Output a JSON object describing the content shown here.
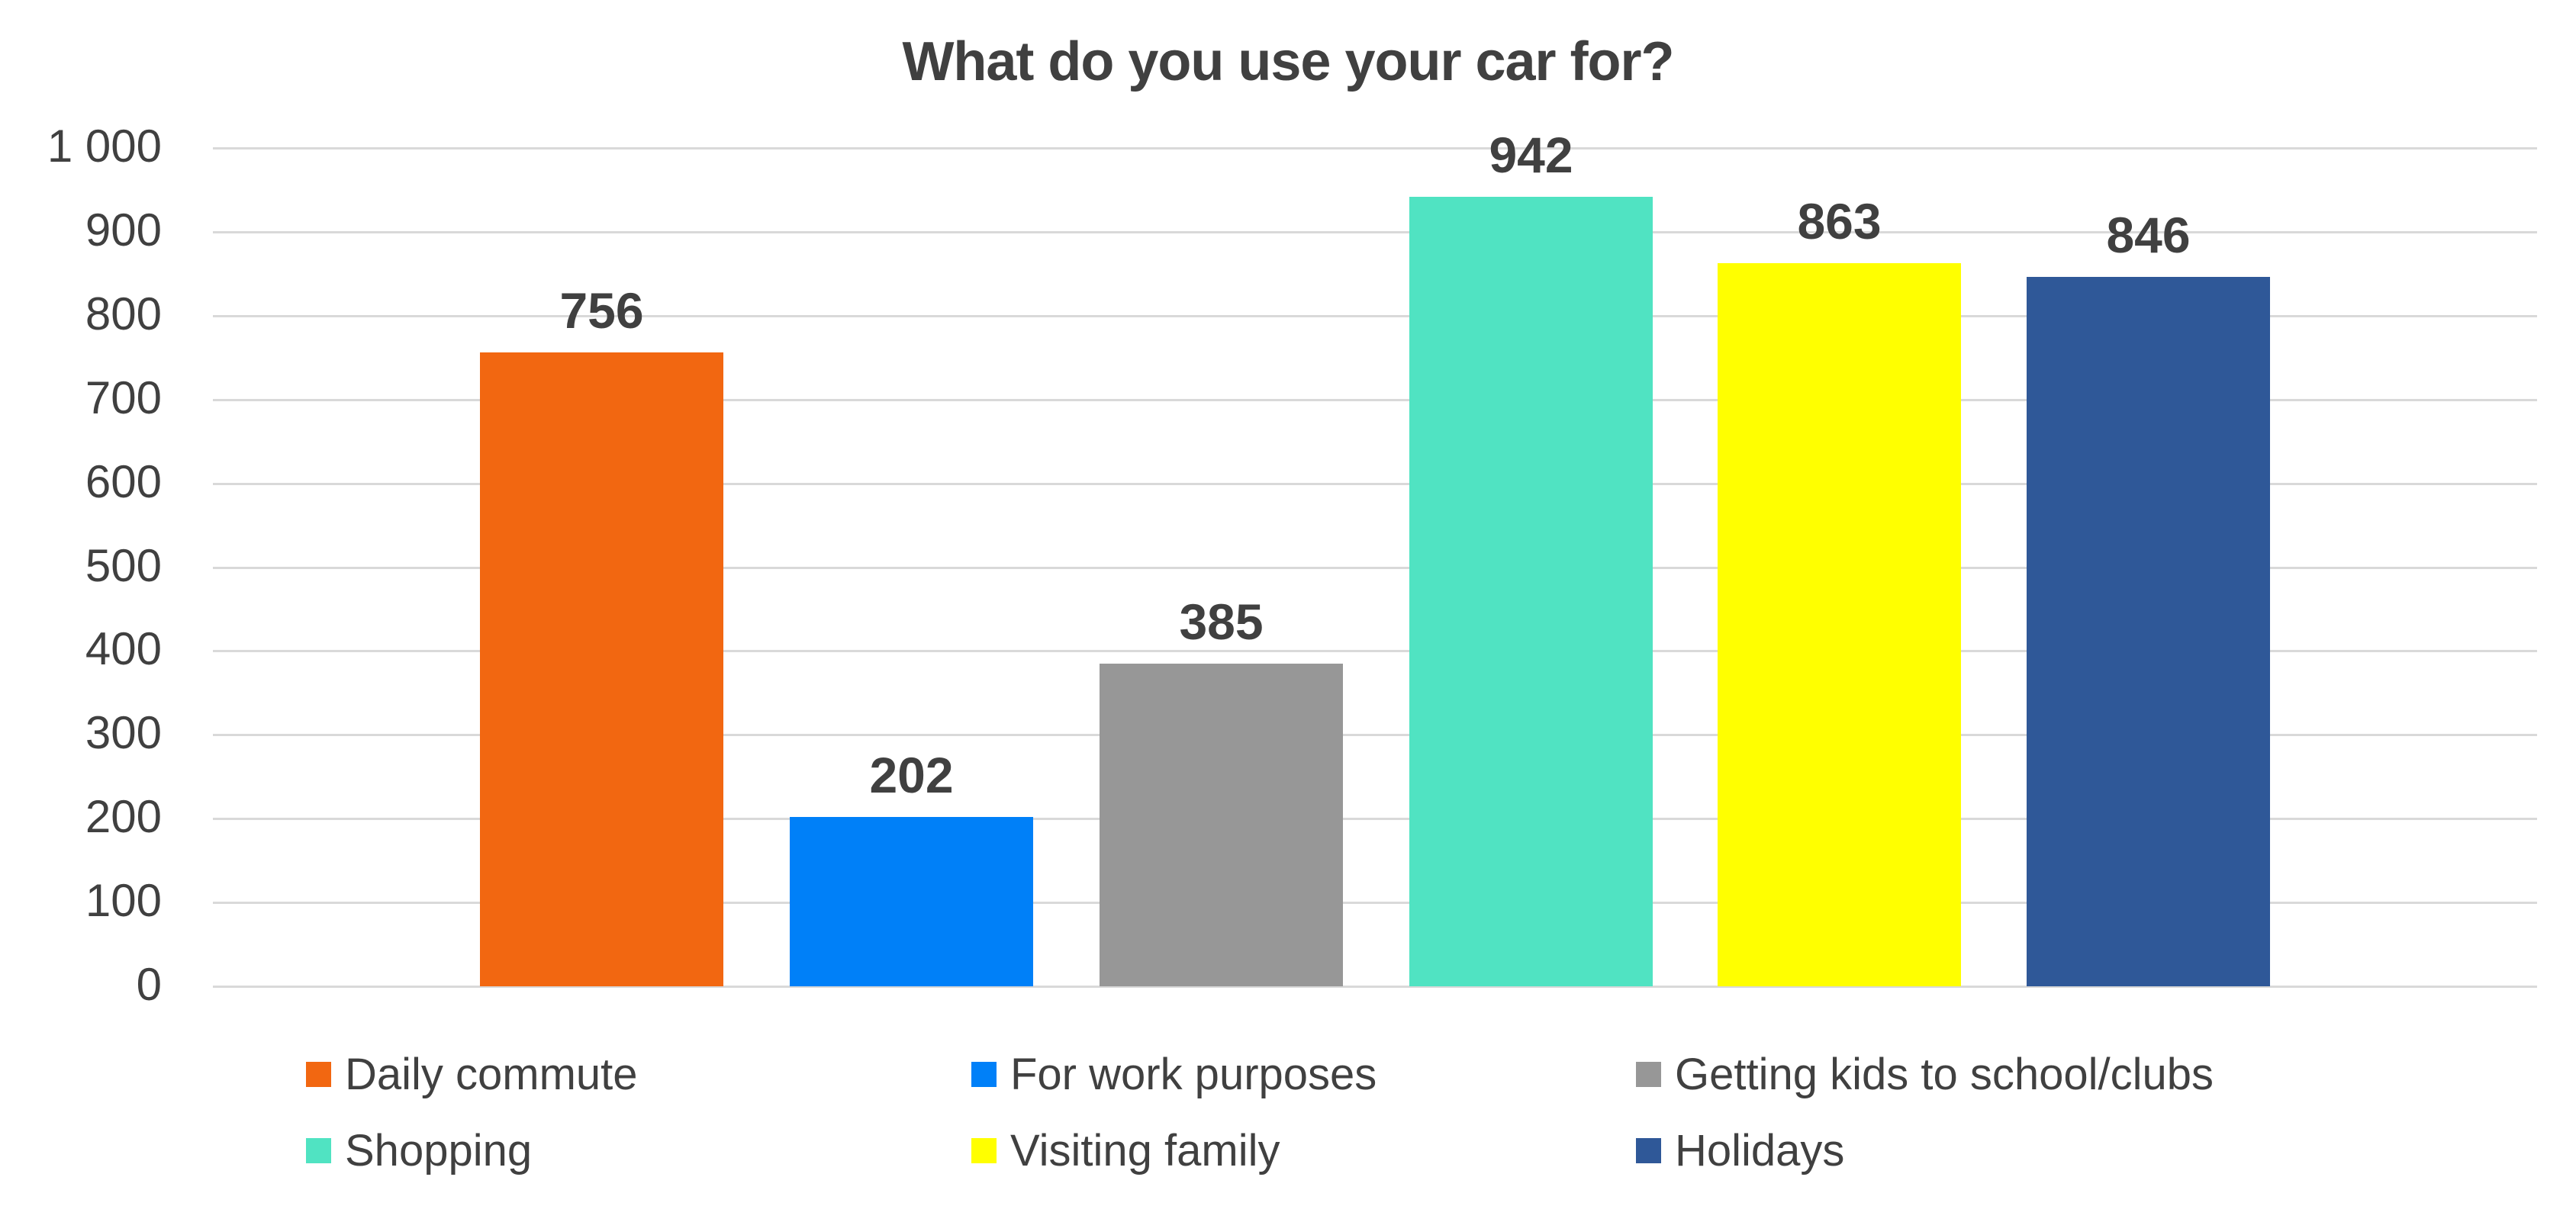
{
  "chart_data": {
    "type": "bar",
    "title": "What do you use your car for?",
    "xlabel": "",
    "ylabel": "",
    "ylim": [
      0,
      1000
    ],
    "yticks": [
      0,
      100,
      200,
      300,
      400,
      500,
      600,
      700,
      800,
      900,
      1000
    ],
    "ytick_labels": [
      "0",
      "100",
      "200",
      "300",
      "400",
      "500",
      "600",
      "700",
      "800",
      "900",
      "1 000"
    ],
    "grid": true,
    "legend_position": "bottom",
    "categories": [
      "Daily commute",
      "For work purposes",
      "Getting kids to school/clubs",
      "Shopping",
      "Visiting family",
      "Holidays"
    ],
    "values": [
      756,
      202,
      385,
      942,
      863,
      846
    ],
    "colors": [
      "#F26711",
      "#0080F8",
      "#979797",
      "#50E3C2",
      "#FFFF00",
      "#2F5898"
    ],
    "data_labels": [
      "756",
      "202",
      "385",
      "942",
      "863",
      "846"
    ]
  }
}
